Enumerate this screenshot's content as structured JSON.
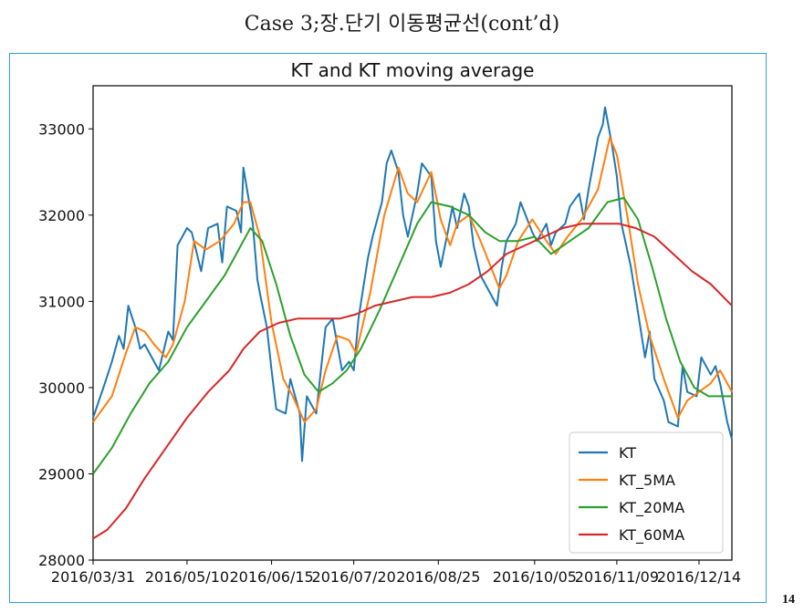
{
  "slide": {
    "title": "Case 3;장.단기 이동평균선(cont’d)",
    "page_number": "14"
  },
  "colors": {
    "KT": "#1f77b4",
    "KT_5MA": "#ff7f0e",
    "KT_20MA": "#2ca02c",
    "KT_60MA": "#d62728",
    "frame": "#2e9fd8"
  },
  "chart_data": {
    "type": "line",
    "title": "KT and KT moving average",
    "xlabel": "",
    "ylabel": "",
    "grid": false,
    "legend_position": "lower-right",
    "xlim": [
      "2016-03-31",
      "2016-12-28"
    ],
    "ylim": [
      28000,
      33500
    ],
    "x_ticks": [
      "2016/03/31",
      "2016/05/10",
      "2016/06/15",
      "2016/07/20",
      "2016/08/25",
      "2016/10/05",
      "2016/11/09",
      "2016/12/14"
    ],
    "y_ticks": [
      28000,
      29000,
      30000,
      31000,
      32000,
      33000
    ],
    "series": [
      {
        "name": "KT",
        "points": [
          [
            "2016-03-31",
            29650
          ],
          [
            "2016-04-05",
            30050
          ],
          [
            "2016-04-08",
            30300
          ],
          [
            "2016-04-11",
            30600
          ],
          [
            "2016-04-13",
            30450
          ],
          [
            "2016-04-15",
            30950
          ],
          [
            "2016-04-18",
            30700
          ],
          [
            "2016-04-20",
            30450
          ],
          [
            "2016-04-22",
            30500
          ],
          [
            "2016-04-26",
            30300
          ],
          [
            "2016-04-28",
            30200
          ],
          [
            "2016-05-02",
            30650
          ],
          [
            "2016-05-04",
            30550
          ],
          [
            "2016-05-06",
            31650
          ],
          [
            "2016-05-10",
            31850
          ],
          [
            "2016-05-12",
            31800
          ],
          [
            "2016-05-16",
            31350
          ],
          [
            "2016-05-19",
            31850
          ],
          [
            "2016-05-23",
            31900
          ],
          [
            "2016-05-25",
            31450
          ],
          [
            "2016-05-27",
            32100
          ],
          [
            "2016-05-31",
            32050
          ],
          [
            "2016-06-02",
            31800
          ],
          [
            "2016-06-03",
            32550
          ],
          [
            "2016-06-07",
            31900
          ],
          [
            "2016-06-09",
            31250
          ],
          [
            "2016-06-10",
            31100
          ],
          [
            "2016-06-13",
            30700
          ],
          [
            "2016-06-15",
            30200
          ],
          [
            "2016-06-17",
            29750
          ],
          [
            "2016-06-21",
            29700
          ],
          [
            "2016-06-23",
            30100
          ],
          [
            "2016-06-27",
            29700
          ],
          [
            "2016-06-28",
            29150
          ],
          [
            "2016-06-30",
            29900
          ],
          [
            "2016-07-04",
            29700
          ],
          [
            "2016-07-06",
            30200
          ],
          [
            "2016-07-08",
            30700
          ],
          [
            "2016-07-11",
            30800
          ],
          [
            "2016-07-13",
            30500
          ],
          [
            "2016-07-15",
            30200
          ],
          [
            "2016-07-18",
            30300
          ],
          [
            "2016-07-20",
            30200
          ],
          [
            "2016-07-22",
            30800
          ],
          [
            "2016-07-26",
            31500
          ],
          [
            "2016-07-28",
            31750
          ],
          [
            "2016-08-01",
            32150
          ],
          [
            "2016-08-03",
            32600
          ],
          [
            "2016-08-05",
            32750
          ],
          [
            "2016-08-08",
            32500
          ],
          [
            "2016-08-10",
            32000
          ],
          [
            "2016-08-12",
            31750
          ],
          [
            "2016-08-16",
            32250
          ],
          [
            "2016-08-18",
            32600
          ],
          [
            "2016-08-22",
            32450
          ],
          [
            "2016-08-24",
            31700
          ],
          [
            "2016-08-26",
            31400
          ],
          [
            "2016-08-29",
            31800
          ],
          [
            "2016-08-31",
            32100
          ],
          [
            "2016-09-02",
            31850
          ],
          [
            "2016-09-05",
            32250
          ],
          [
            "2016-09-07",
            32100
          ],
          [
            "2016-09-09",
            31650
          ],
          [
            "2016-09-12",
            31300
          ],
          [
            "2016-09-19",
            30950
          ],
          [
            "2016-09-21",
            31400
          ],
          [
            "2016-09-23",
            31700
          ],
          [
            "2016-09-27",
            31900
          ],
          [
            "2016-09-29",
            32150
          ],
          [
            "2016-10-04",
            31800
          ],
          [
            "2016-10-06",
            31700
          ],
          [
            "2016-10-10",
            31900
          ],
          [
            "2016-10-12",
            31650
          ],
          [
            "2016-10-14",
            31800
          ],
          [
            "2016-10-18",
            31900
          ],
          [
            "2016-10-20",
            32100
          ],
          [
            "2016-10-24",
            32250
          ],
          [
            "2016-10-26",
            31950
          ],
          [
            "2016-10-28",
            32300
          ],
          [
            "2016-11-01",
            32900
          ],
          [
            "2016-11-03",
            33050
          ],
          [
            "2016-11-04",
            33250
          ],
          [
            "2016-11-07",
            32800
          ],
          [
            "2016-11-09",
            32450
          ],
          [
            "2016-11-11",
            31900
          ],
          [
            "2016-11-15",
            31400
          ],
          [
            "2016-11-17",
            31050
          ],
          [
            "2016-11-21",
            30350
          ],
          [
            "2016-11-23",
            30650
          ],
          [
            "2016-11-25",
            30100
          ],
          [
            "2016-11-29",
            29850
          ],
          [
            "2016-12-01",
            29600
          ],
          [
            "2016-12-05",
            29550
          ],
          [
            "2016-12-07",
            30250
          ],
          [
            "2016-12-09",
            29950
          ],
          [
            "2016-12-13",
            29900
          ],
          [
            "2016-12-15",
            30350
          ],
          [
            "2016-12-19",
            30150
          ],
          [
            "2016-12-21",
            30250
          ],
          [
            "2016-12-23",
            30050
          ],
          [
            "2016-12-26",
            29600
          ],
          [
            "2016-12-28",
            29400
          ]
        ]
      },
      {
        "name": "KT_5MA",
        "points": [
          [
            "2016-03-31",
            29600
          ],
          [
            "2016-04-08",
            29900
          ],
          [
            "2016-04-14",
            30400
          ],
          [
            "2016-04-18",
            30700
          ],
          [
            "2016-04-22",
            30650
          ],
          [
            "2016-04-26",
            30500
          ],
          [
            "2016-05-01",
            30350
          ],
          [
            "2016-05-04",
            30500
          ],
          [
            "2016-05-09",
            31000
          ],
          [
            "2016-05-13",
            31700
          ],
          [
            "2016-05-18",
            31600
          ],
          [
            "2016-05-24",
            31700
          ],
          [
            "2016-05-30",
            31900
          ],
          [
            "2016-06-03",
            32150
          ],
          [
            "2016-06-06",
            32150
          ],
          [
            "2016-06-10",
            31750
          ],
          [
            "2016-06-15",
            30750
          ],
          [
            "2016-06-20",
            30100
          ],
          [
            "2016-06-24",
            29900
          ],
          [
            "2016-06-29",
            29600
          ],
          [
            "2016-07-04",
            29750
          ],
          [
            "2016-07-08",
            30200
          ],
          [
            "2016-07-13",
            30600
          ],
          [
            "2016-07-18",
            30550
          ],
          [
            "2016-07-21",
            30400
          ],
          [
            "2016-07-27",
            31100
          ],
          [
            "2016-08-02",
            32000
          ],
          [
            "2016-08-08",
            32550
          ],
          [
            "2016-08-12",
            32250
          ],
          [
            "2016-08-16",
            32150
          ],
          [
            "2016-08-22",
            32500
          ],
          [
            "2016-08-26",
            31950
          ],
          [
            "2016-08-30",
            31650
          ],
          [
            "2016-09-02",
            31900
          ],
          [
            "2016-09-07",
            32000
          ],
          [
            "2016-09-12",
            31700
          ],
          [
            "2016-09-20",
            31150
          ],
          [
            "2016-09-23",
            31300
          ],
          [
            "2016-09-28",
            31700
          ],
          [
            "2016-10-04",
            31950
          ],
          [
            "2016-10-10",
            31700
          ],
          [
            "2016-10-14",
            31550
          ],
          [
            "2016-10-19",
            31750
          ],
          [
            "2016-10-25",
            31950
          ],
          [
            "2016-11-01",
            32300
          ],
          [
            "2016-11-06",
            32900
          ],
          [
            "2016-11-09",
            32700
          ],
          [
            "2016-11-14",
            31900
          ],
          [
            "2016-11-18",
            31200
          ],
          [
            "2016-11-23",
            30600
          ],
          [
            "2016-11-29",
            30100
          ],
          [
            "2016-12-05",
            29650
          ],
          [
            "2016-12-09",
            29850
          ],
          [
            "2016-12-14",
            29950
          ],
          [
            "2016-12-19",
            30050
          ],
          [
            "2016-12-23",
            30200
          ],
          [
            "2016-12-28",
            29950
          ]
        ]
      },
      {
        "name": "KT_20MA",
        "points": [
          [
            "2016-03-31",
            29000
          ],
          [
            "2016-04-08",
            29300
          ],
          [
            "2016-04-16",
            29700
          ],
          [
            "2016-04-24",
            30050
          ],
          [
            "2016-05-02",
            30300
          ],
          [
            "2016-05-10",
            30700
          ],
          [
            "2016-05-18",
            31000
          ],
          [
            "2016-05-26",
            31300
          ],
          [
            "2016-06-02",
            31650
          ],
          [
            "2016-06-06",
            31850
          ],
          [
            "2016-06-11",
            31700
          ],
          [
            "2016-06-17",
            31200
          ],
          [
            "2016-06-23",
            30600
          ],
          [
            "2016-06-29",
            30150
          ],
          [
            "2016-07-05",
            29950
          ],
          [
            "2016-07-11",
            30050
          ],
          [
            "2016-07-17",
            30200
          ],
          [
            "2016-07-23",
            30450
          ],
          [
            "2016-07-31",
            30900
          ],
          [
            "2016-08-08",
            31400
          ],
          [
            "2016-08-16",
            31900
          ],
          [
            "2016-08-22",
            32150
          ],
          [
            "2016-08-30",
            32100
          ],
          [
            "2016-09-07",
            32000
          ],
          [
            "2016-09-14",
            31800
          ],
          [
            "2016-09-20",
            31700
          ],
          [
            "2016-09-28",
            31700
          ],
          [
            "2016-10-05",
            31750
          ],
          [
            "2016-10-12",
            31550
          ],
          [
            "2016-10-20",
            31700
          ],
          [
            "2016-10-28",
            31850
          ],
          [
            "2016-11-05",
            32150
          ],
          [
            "2016-11-12",
            32200
          ],
          [
            "2016-11-18",
            31950
          ],
          [
            "2016-11-24",
            31400
          ],
          [
            "2016-11-30",
            30800
          ],
          [
            "2016-12-06",
            30300
          ],
          [
            "2016-12-12",
            30000
          ],
          [
            "2016-12-18",
            29900
          ],
          [
            "2016-12-28",
            29900
          ]
        ]
      },
      {
        "name": "KT_60MA",
        "points": [
          [
            "2016-03-31",
            28250
          ],
          [
            "2016-04-06",
            28350
          ],
          [
            "2016-04-14",
            28600
          ],
          [
            "2016-04-22",
            28950
          ],
          [
            "2016-05-01",
            29300
          ],
          [
            "2016-05-10",
            29650
          ],
          [
            "2016-05-19",
            29950
          ],
          [
            "2016-05-28",
            30200
          ],
          [
            "2016-06-03",
            30450
          ],
          [
            "2016-06-10",
            30650
          ],
          [
            "2016-06-18",
            30750
          ],
          [
            "2016-06-26",
            30800
          ],
          [
            "2016-07-05",
            30800
          ],
          [
            "2016-07-14",
            30800
          ],
          [
            "2016-07-21",
            30850
          ],
          [
            "2016-07-29",
            30950
          ],
          [
            "2016-08-06",
            31000
          ],
          [
            "2016-08-14",
            31050
          ],
          [
            "2016-08-22",
            31050
          ],
          [
            "2016-08-30",
            31100
          ],
          [
            "2016-09-07",
            31200
          ],
          [
            "2016-09-15",
            31350
          ],
          [
            "2016-09-23",
            31550
          ],
          [
            "2016-10-01",
            31650
          ],
          [
            "2016-10-09",
            31750
          ],
          [
            "2016-10-17",
            31850
          ],
          [
            "2016-10-25",
            31900
          ],
          [
            "2016-11-02",
            31900
          ],
          [
            "2016-11-10",
            31900
          ],
          [
            "2016-11-17",
            31850
          ],
          [
            "2016-11-25",
            31750
          ],
          [
            "2016-12-03",
            31550
          ],
          [
            "2016-12-11",
            31350
          ],
          [
            "2016-12-19",
            31200
          ],
          [
            "2016-12-28",
            30950
          ]
        ]
      }
    ]
  }
}
